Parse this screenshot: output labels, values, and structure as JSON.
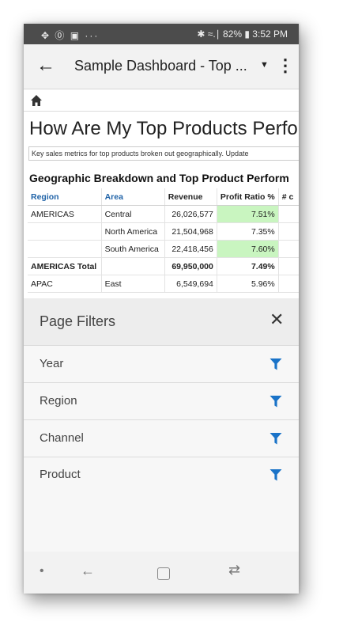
{
  "status_bar": {
    "left_icons": "✥ ⓪ ▣ ···",
    "right_text": "✱ ≈.∣ 82% ▮ 3:52 PM",
    "battery": "82%",
    "time": "3:52 PM"
  },
  "app_bar": {
    "back_icon": "←",
    "title": "Sample Dashboard - Top ...",
    "dropdown_icon": "▼",
    "overflow_icon": "⋮"
  },
  "dashboard": {
    "title": "How Are My Top Products Perform",
    "subtitle": "Key sales metrics for top products broken out geographically. Update",
    "section_title": "Geographic Breakdown and Top Product Perform",
    "table": {
      "headers": [
        "Region",
        "Area",
        "Revenue",
        "Profit Ratio %",
        "# c"
      ],
      "rows": [
        {
          "region": "AMERICAS",
          "area": "Central",
          "revenue": "26,026,577",
          "profit": "7.51%",
          "highlight": true
        },
        {
          "region": "",
          "area": "North America",
          "revenue": "21,504,968",
          "profit": "7.35%",
          "highlight": false
        },
        {
          "region": "",
          "area": "South America",
          "revenue": "22,418,456",
          "profit": "7.60%",
          "highlight": true
        },
        {
          "region": "AMERICAS Total",
          "area": "",
          "revenue": "69,950,000",
          "profit": "7.49%",
          "highlight": false
        },
        {
          "region": "APAC",
          "area": "East",
          "revenue": "6,549,694",
          "profit": "5.96%",
          "highlight": false
        }
      ]
    }
  },
  "page_filters": {
    "title": "Page Filters",
    "close_icon": "✕",
    "items": [
      {
        "label": "Year"
      },
      {
        "label": "Region"
      },
      {
        "label": "Channel"
      },
      {
        "label": "Product"
      }
    ]
  },
  "nav_bar": {
    "dot": "•",
    "back": "←",
    "recent": "⇄"
  },
  "colors": {
    "accent": "#1a73c8",
    "header_blue": "#1f62a7",
    "highlight_green": "#c9f5c0",
    "status_bar": "#4c4c4c"
  }
}
